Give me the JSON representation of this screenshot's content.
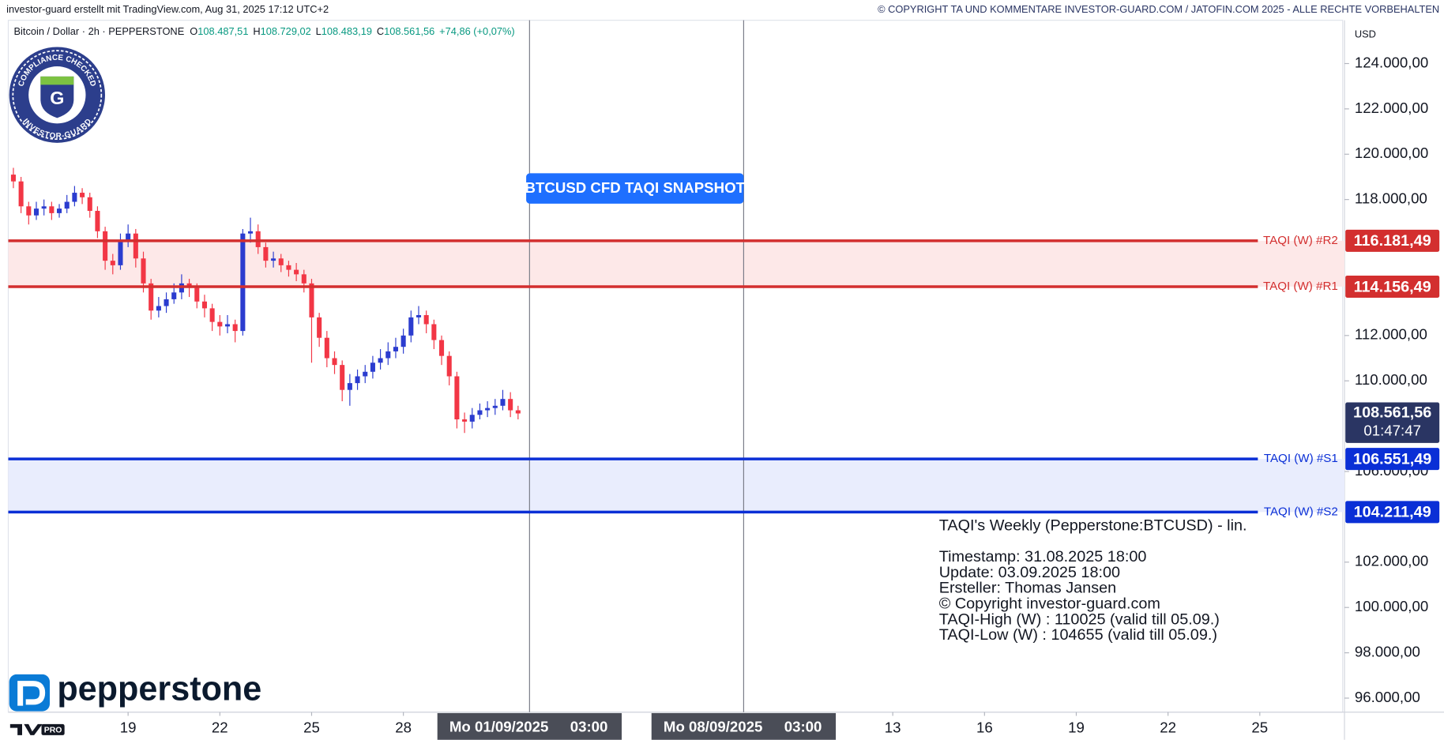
{
  "header": {
    "left": "investor-guard erstellt mit TradingView.com, Aug 31, 2025 17:12 UTC+2",
    "right": "© COPYRIGHT TA UND KOMMENTARE INVESTOR-GUARD.COM / JATOFIN.COM 2025 - ALLE RECHTE VORBEHALTEN"
  },
  "badge": {
    "top": "COMPLIANCE CHECKED",
    "bottom": "INVESTOR-GUARD",
    "letter": "G"
  },
  "brand": "pepperstone",
  "tv_plan": "PRO",
  "chart_data": {
    "type": "candlestick",
    "title": "Bitcoin / Dollar · 2h · PEPPERSTONE",
    "legend": [
      {
        "key": "O",
        "value": "108.487,51"
      },
      {
        "key": "H",
        "value": "108.729,02"
      },
      {
        "key": "L",
        "value": "108.483,19"
      },
      {
        "key": "C",
        "value": "108.561,56"
      }
    ],
    "change": "+74,86 (+0,07%)",
    "currency": "USD",
    "up_color": "#2b3ccf",
    "down_color": "#f23645",
    "x": [
      "2025-08-15 06:00",
      "2025-08-15 12:00",
      "2025-08-15 18:00",
      "2025-08-16 00:00",
      "2025-08-16 06:00",
      "2025-08-16 12:00",
      "2025-08-16 18:00",
      "2025-08-17 00:00",
      "2025-08-17 06:00",
      "2025-08-17 12:00",
      "2025-08-17 18:00",
      "2025-08-18 00:00",
      "2025-08-18 06:00",
      "2025-08-18 12:00",
      "2025-08-18 18:00",
      "2025-08-19 00:00",
      "2025-08-19 06:00",
      "2025-08-19 12:00",
      "2025-08-19 18:00",
      "2025-08-20 00:00",
      "2025-08-20 06:00",
      "2025-08-20 12:00",
      "2025-08-20 18:00",
      "2025-08-21 00:00",
      "2025-08-21 06:00",
      "2025-08-21 12:00",
      "2025-08-21 18:00",
      "2025-08-22 00:00",
      "2025-08-22 06:00",
      "2025-08-22 12:00",
      "2025-08-22 18:00",
      "2025-08-23 00:00",
      "2025-08-23 06:00",
      "2025-08-23 12:00",
      "2025-08-23 18:00",
      "2025-08-24 00:00",
      "2025-08-24 06:00",
      "2025-08-24 12:00",
      "2025-08-24 18:00",
      "2025-08-25 00:00",
      "2025-08-25 06:00",
      "2025-08-25 12:00",
      "2025-08-25 18:00",
      "2025-08-26 00:00",
      "2025-08-26 06:00",
      "2025-08-26 12:00",
      "2025-08-26 18:00",
      "2025-08-27 00:00",
      "2025-08-27 06:00",
      "2025-08-27 12:00",
      "2025-08-27 18:00",
      "2025-08-28 00:00",
      "2025-08-28 06:00",
      "2025-08-28 12:00",
      "2025-08-28 18:00",
      "2025-08-29 00:00",
      "2025-08-29 06:00",
      "2025-08-29 12:00",
      "2025-08-29 18:00",
      "2025-08-30 00:00",
      "2025-08-30 06:00",
      "2025-08-30 12:00",
      "2025-08-30 18:00",
      "2025-08-31 00:00",
      "2025-08-31 06:00",
      "2025-08-31 12:00",
      "2025-08-31 18:00"
    ],
    "open": [
      119100,
      118800,
      117700,
      117300,
      117600,
      117700,
      117400,
      117600,
      117900,
      118300,
      118100,
      117500,
      116600,
      115300,
      115100,
      116200,
      116500,
      115400,
      114300,
      113100,
      113300,
      113600,
      113900,
      114300,
      114100,
      113500,
      113200,
      112600,
      112400,
      112500,
      112200,
      116500,
      116600,
      115900,
      115300,
      115400,
      115100,
      114900,
      114700,
      114300,
      112800,
      111900,
      111000,
      110700,
      109600,
      109900,
      110200,
      110400,
      110800,
      111000,
      111300,
      111500,
      112000,
      112800,
      112900,
      112500,
      111800,
      111100,
      110200,
      108300,
      108200,
      108500,
      108700,
      108800,
      108900,
      109200,
      108700
    ],
    "high": [
      119400,
      119000,
      117900,
      117900,
      118000,
      117900,
      117800,
      118200,
      118600,
      118500,
      118300,
      117700,
      116800,
      115600,
      116500,
      116900,
      116700,
      115700,
      114500,
      113700,
      113900,
      114300,
      114700,
      114500,
      114300,
      113800,
      113400,
      112900,
      112900,
      112700,
      116700,
      117200,
      116900,
      116100,
      115700,
      115600,
      115300,
      115200,
      114900,
      114500,
      113000,
      112200,
      111300,
      110900,
      110300,
      110500,
      110700,
      111100,
      111400,
      111700,
      111900,
      112300,
      113100,
      113300,
      113100,
      112700,
      112000,
      111300,
      110400,
      108600,
      108800,
      109000,
      109100,
      109200,
      109600,
      109500,
      108900
    ],
    "low": [
      118500,
      117400,
      116900,
      117100,
      117300,
      117100,
      117200,
      117400,
      117700,
      117800,
      117200,
      116300,
      114900,
      114700,
      114900,
      115900,
      115000,
      113900,
      112700,
      112800,
      113000,
      113400,
      113600,
      113700,
      113200,
      112800,
      112200,
      112000,
      112100,
      111700,
      112000,
      116100,
      115600,
      115000,
      115000,
      114800,
      114600,
      114400,
      113900,
      110800,
      111500,
      110600,
      110300,
      109100,
      108900,
      109600,
      109900,
      110100,
      110500,
      110700,
      111000,
      111200,
      111700,
      112500,
      112100,
      111400,
      110700,
      109800,
      107900,
      107700,
      107900,
      108300,
      108400,
      108500,
      108700,
      108400,
      108300
    ],
    "close": [
      118800,
      117700,
      117300,
      117600,
      117700,
      117400,
      117600,
      117900,
      118300,
      118100,
      117500,
      116600,
      115300,
      115100,
      116200,
      116500,
      115400,
      114300,
      113100,
      113300,
      113600,
      113900,
      114300,
      114100,
      113500,
      113200,
      112600,
      112400,
      112500,
      112200,
      116500,
      116600,
      115900,
      115300,
      115400,
      115100,
      114900,
      114700,
      114300,
      112800,
      111900,
      111000,
      110700,
      109600,
      109900,
      110200,
      110400,
      110800,
      111000,
      111300,
      111500,
      112000,
      112800,
      112900,
      112500,
      111800,
      111100,
      110200,
      108300,
      108200,
      108500,
      108700,
      108800,
      108900,
      109200,
      108700,
      108561.56
    ],
    "xlim": [
      "2025-08-15 02:00",
      "2025-09-27 17:00"
    ],
    "xticks": [
      {
        "value": "2025-08-19 00:00",
        "label": "19"
      },
      {
        "value": "2025-08-22 00:00",
        "label": "22"
      },
      {
        "value": "2025-08-25 00:00",
        "label": "25"
      },
      {
        "value": "2025-08-28 00:00",
        "label": "28"
      },
      {
        "value": "2025-09-13 00:00",
        "label": "13"
      },
      {
        "value": "2025-09-16 00:00",
        "label": "16"
      },
      {
        "value": "2025-09-19 00:00",
        "label": "19"
      },
      {
        "value": "2025-09-22 00:00",
        "label": "22"
      },
      {
        "value": "2025-09-25 00:00",
        "label": "25"
      }
    ],
    "ylim": [
      95380,
      125910
    ],
    "yticks": [
      {
        "value": 96000,
        "label": "96.000,00"
      },
      {
        "value": 98000,
        "label": "98.000,00"
      },
      {
        "value": 100000,
        "label": "100.000,00"
      },
      {
        "value": 102000,
        "label": "102.000,00"
      },
      {
        "value": 106000,
        "label": "106.000,00"
      },
      {
        "value": 110000,
        "label": "110.000,00"
      },
      {
        "value": 112000,
        "label": "112.000,00"
      },
      {
        "value": 118000,
        "label": "118.000,00"
      },
      {
        "value": 120000,
        "label": "120.000,00"
      },
      {
        "value": 122000,
        "label": "122.000,00"
      },
      {
        "value": 124000,
        "label": "124.000,00"
      }
    ],
    "grid": false,
    "levels": [
      {
        "name": "TAQI (W) #R2",
        "value": 116181.49,
        "value_label": "116.181,49",
        "color": "#d32f2f",
        "zone_color": "#fde8e8"
      },
      {
        "name": "TAQI (W) #R1",
        "value": 114156.49,
        "value_label": "114.156,49",
        "color": "#d32f2f",
        "zone_color": "#fde8e8"
      },
      {
        "name": "TAQI (W) #S1",
        "value": 106551.49,
        "value_label": "106.551,49",
        "color": "#0a2fd6",
        "zone_color": "#e9edfd"
      },
      {
        "name": "TAQI (W) #S2",
        "value": 104211.49,
        "value_label": "104.211,49",
        "color": "#0a2fd6",
        "zone_color": "#e9edfd"
      }
    ],
    "last_price": {
      "value": 108561.56,
      "label": "108.561,56",
      "countdown": "01:47:47",
      "color": "#2a3563"
    },
    "markers": [
      {
        "x": "2025-09-01 03:00",
        "date": "Mo 01/09/2025",
        "time": "03:00"
      },
      {
        "x": "2025-09-08 03:00",
        "date": "Mo 08/09/2025",
        "time": "03:00"
      }
    ],
    "annotation": "BTCUSD CFD TAQI SNAPSHOT",
    "info_title": "TAQI's Weekly (Pepperstone:BTCUSD) - lin.",
    "info_lines": [
      "Timestamp: 31.08.2025 18:00",
      "Update: 03.09.2025 18:00",
      "Ersteller: Thomas Jansen",
      "© Copyright investor-guard.com",
      "TAQI-High (W) : 110025 (valid till 05.09.)",
      "TAQI-Low (W) : 104655 (valid till 05.09.)"
    ]
  }
}
